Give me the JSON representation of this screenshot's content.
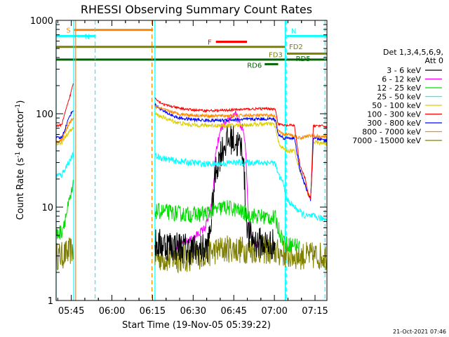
{
  "chart_data": {
    "type": "line",
    "title": "RHESSI Observing Summary Count Rates",
    "xlabel": "Start Time (19-Nov-05 05:39:22)",
    "ylabel_main": "Count Rate (s",
    "ylabel_sup1": "-1",
    "ylabel_mid": " detector",
    "ylabel_sup2": "-1",
    "ylabel_end": ")",
    "x_unit": "minutes after 05:39:22",
    "xlim": [
      0,
      100
    ],
    "ylim": [
      1,
      1000
    ],
    "y_scale": "log",
    "x_ticks": [
      {
        "label": "05:45",
        "t": 5.6
      },
      {
        "label": "06:00",
        "t": 20.6
      },
      {
        "label": "06:15",
        "t": 35.6
      },
      {
        "label": "06:30",
        "t": 50.6
      },
      {
        "label": "06:45",
        "t": 65.6
      },
      {
        "label": "07:00",
        "t": 80.6
      },
      {
        "label": "07:15",
        "t": 95.6
      }
    ],
    "y_ticks": [
      {
        "label": "1",
        "v": 1
      },
      {
        "label": "10",
        "v": 10
      },
      {
        "label": "100",
        "v": 100
      },
      {
        "label": "1000",
        "v": 1000
      }
    ],
    "legend": {
      "position": "right",
      "header": [
        "Det 1,3,4,5,6,9,",
        "Att 0"
      ],
      "entries": [
        {
          "label": "3 - 6 keV",
          "color": "#000000"
        },
        {
          "label": "6 - 12 keV",
          "color": "#ff00ff"
        },
        {
          "label": "12 - 25 keV",
          "color": "#00dd00"
        },
        {
          "label": "25 - 50 keV",
          "color": "#00ffff"
        },
        {
          "label": "50 - 100 keV",
          "color": "#ddcc00"
        },
        {
          "label": "100 - 300 keV",
          "color": "#ff0000"
        },
        {
          "label": "300 - 800 keV",
          "color": "#0000ff"
        },
        {
          "label": "800 - 7000 keV",
          "color": "#ff8800"
        },
        {
          "label": "7000 - 15000 keV",
          "color": "#808000"
        }
      ]
    },
    "flags": [
      {
        "label": "S",
        "color": "#ff8800",
        "t0": 6.4,
        "t1": 35.8,
        "v": 790
      },
      {
        "label": "N",
        "color": "#00ffff",
        "t0": 0,
        "t1": 14.6,
        "v": 680
      },
      {
        "label": "N",
        "color": "#00ffff",
        "t0": 85.2,
        "t1": 100,
        "v": 680
      },
      {
        "label": "F",
        "color": "#ff0000",
        "t0": 59.0,
        "t1": 70.5,
        "v": 590
      },
      {
        "label": "FD2",
        "color": "#808000",
        "t0": 0,
        "t1": 84.5,
        "v": 520
      },
      {
        "label": "FD3",
        "color": "#808000",
        "t0": 85.2,
        "t1": 100,
        "v": 440
      },
      {
        "label": "RD5",
        "color": "#006400",
        "t0": 0,
        "t1": 100,
        "v": 380
      },
      {
        "label": "RD6",
        "color": "#006400",
        "t0": 77.0,
        "t1": 82.0,
        "v": 340
      }
    ],
    "markers": [
      {
        "t": 0.0,
        "color": "#00ffff",
        "style": "solid"
      },
      {
        "t": 6.5,
        "color": "#00ffff",
        "style": "solid"
      },
      {
        "t": 7.2,
        "color": "#ff8800",
        "style": "solid"
      },
      {
        "t": 14.4,
        "color": "#00ffff",
        "style": "dashed"
      },
      {
        "t": 35.4,
        "color": "#ff8800",
        "style": "dashed"
      },
      {
        "t": 36.5,
        "color": "#00ffff",
        "style": "solid"
      },
      {
        "t": 84.6,
        "color": "#00ffff",
        "style": "solid"
      },
      {
        "t": 85.0,
        "color": "#00ffff",
        "style": "dashed"
      },
      {
        "t": 99.3,
        "color": "#00ffff",
        "style": "dashed"
      }
    ],
    "series": [
      {
        "name": "7000 - 15000 keV",
        "color": "#808000",
        "noise": 0.35,
        "points": [
          [
            0,
            3
          ],
          [
            2,
            3
          ],
          [
            4,
            3.2
          ],
          [
            6,
            3.5
          ],
          [
            6.3,
            3.3
          ],
          [
            36.5,
            3.0
          ],
          [
            40,
            2.8
          ],
          [
            44,
            2.8
          ],
          [
            48,
            2.8
          ],
          [
            52,
            3.0
          ],
          [
            56,
            3.2
          ],
          [
            60,
            3.5
          ],
          [
            64,
            3.6
          ],
          [
            68,
            3.5
          ],
          [
            72,
            3.5
          ],
          [
            76,
            3.5
          ],
          [
            80,
            3.3
          ],
          [
            84,
            3.2
          ],
          [
            85.2,
            3.0
          ],
          [
            90,
            3.0
          ],
          [
            95,
            3.0
          ],
          [
            100,
            3.0
          ]
        ]
      },
      {
        "name": "6 - 12 keV",
        "color": "#ff00ff",
        "noise": 0.1,
        "points": [
          [
            36.5,
            3.8
          ],
          [
            44,
            3.8
          ],
          [
            50,
            4.5
          ],
          [
            55,
            6
          ],
          [
            57,
            9
          ],
          [
            58,
            15
          ],
          [
            59,
            40
          ],
          [
            61,
            70
          ],
          [
            63,
            80
          ],
          [
            65,
            95
          ],
          [
            66,
            100
          ],
          [
            67,
            90
          ],
          [
            68,
            75
          ],
          [
            69,
            70
          ],
          [
            70,
            40
          ],
          [
            71,
            8
          ],
          [
            72,
            5
          ],
          [
            74,
            4
          ],
          [
            75,
            4.2
          ]
        ]
      },
      {
        "name": "3 - 6 keV",
        "color": "#000000",
        "noise": 0.4,
        "points": [
          [
            36.5,
            4.0
          ],
          [
            40,
            4.0
          ],
          [
            45,
            3.8
          ],
          [
            50,
            3.5
          ],
          [
            54,
            3.5
          ],
          [
            56,
            3.8
          ],
          [
            57,
            6
          ],
          [
            59,
            25
          ],
          [
            61,
            40
          ],
          [
            63,
            50
          ],
          [
            65,
            55
          ],
          [
            66,
            50
          ],
          [
            68,
            45
          ],
          [
            69,
            40
          ],
          [
            70,
            10
          ],
          [
            71,
            5
          ],
          [
            74,
            4.2
          ],
          [
            78,
            4.0
          ],
          [
            81,
            4.0
          ]
        ]
      },
      {
        "name": "12 - 25 keV",
        "color": "#00dd00",
        "noise": 0.2,
        "points": [
          [
            0,
            5
          ],
          [
            2,
            5.5
          ],
          [
            3,
            7
          ],
          [
            4.5,
            10
          ],
          [
            6,
            15
          ],
          [
            6.3,
            16
          ],
          [
            36.5,
            9
          ],
          [
            40,
            9
          ],
          [
            45,
            8.5
          ],
          [
            50,
            8.3
          ],
          [
            55,
            8.5
          ],
          [
            60,
            9.5
          ],
          [
            62,
            10
          ],
          [
            66,
            9.5
          ],
          [
            70,
            8.5
          ],
          [
            74,
            8.0
          ],
          [
            78,
            7.8
          ],
          [
            81,
            7.6
          ],
          [
            82,
            6
          ],
          [
            83,
            5
          ],
          [
            84,
            4.5
          ],
          [
            85.2,
            4
          ],
          [
            88,
            4
          ],
          [
            90,
            3.8
          ]
        ]
      },
      {
        "name": "25 - 50 keV",
        "color": "#00ffff",
        "noise": 0.08,
        "points": [
          [
            0,
            22
          ],
          [
            2,
            22
          ],
          [
            3,
            25
          ],
          [
            4.5,
            30
          ],
          [
            6,
            35
          ],
          [
            6.3,
            36
          ],
          [
            36.5,
            35
          ],
          [
            40,
            33
          ],
          [
            45,
            31
          ],
          [
            50,
            30
          ],
          [
            55,
            29
          ],
          [
            60,
            29
          ],
          [
            65,
            30
          ],
          [
            70,
            30
          ],
          [
            75,
            30
          ],
          [
            80,
            30
          ],
          [
            81,
            29
          ],
          [
            82,
            22
          ],
          [
            83,
            20
          ],
          [
            84,
            18
          ],
          [
            85.2,
            12
          ],
          [
            88,
            10
          ],
          [
            92,
            8
          ],
          [
            95,
            8
          ],
          [
            98,
            7.5
          ],
          [
            100,
            7.5
          ]
        ]
      },
      {
        "name": "50 - 100 keV",
        "color": "#ddcc00",
        "noise": 0.05,
        "points": [
          [
            0,
            48
          ],
          [
            2,
            48
          ],
          [
            3,
            55
          ],
          [
            5,
            65
          ],
          [
            6.3,
            70
          ],
          [
            36.5,
            100
          ],
          [
            40,
            90
          ],
          [
            45,
            80
          ],
          [
            50,
            76
          ],
          [
            55,
            75
          ],
          [
            60,
            75
          ],
          [
            65,
            75
          ],
          [
            70,
            76
          ],
          [
            75,
            77
          ],
          [
            80,
            78
          ],
          [
            81,
            72
          ],
          [
            82,
            50
          ],
          [
            83,
            45
          ],
          [
            84,
            42
          ],
          [
            85.2,
            40
          ],
          [
            88,
            40
          ],
          [
            90,
            25
          ],
          [
            93,
            14
          ],
          [
            94,
            12
          ],
          [
            95,
            50
          ],
          [
            98,
            48
          ],
          [
            100,
            48
          ]
        ]
      },
      {
        "name": "300 - 800 keV",
        "color": "#0000ff",
        "noise": 0.04,
        "points": [
          [
            0,
            55
          ],
          [
            2,
            55
          ],
          [
            3,
            65
          ],
          [
            5,
            95
          ],
          [
            6.3,
            110
          ],
          [
            36.5,
            125
          ],
          [
            40,
            105
          ],
          [
            45,
            90
          ],
          [
            50,
            87
          ],
          [
            55,
            85
          ],
          [
            60,
            85
          ],
          [
            65,
            86
          ],
          [
            70,
            87
          ],
          [
            75,
            88
          ],
          [
            80,
            88
          ],
          [
            81,
            85
          ],
          [
            82,
            60
          ],
          [
            84,
            55
          ],
          [
            85.2,
            55
          ],
          [
            88,
            55
          ],
          [
            90,
            25
          ],
          [
            93,
            14
          ],
          [
            94,
            12
          ],
          [
            95,
            55
          ],
          [
            98,
            53
          ],
          [
            100,
            52
          ]
        ]
      },
      {
        "name": "800 - 7000 keV",
        "color": "#ff8800",
        "noise": 0.04,
        "points": [
          [
            0,
            50
          ],
          [
            2,
            52
          ],
          [
            3,
            60
          ],
          [
            5,
            80
          ],
          [
            6.3,
            90
          ],
          [
            36.5,
            120
          ],
          [
            40,
            110
          ],
          [
            45,
            100
          ],
          [
            50,
            97
          ],
          [
            55,
            95
          ],
          [
            60,
            95
          ],
          [
            65,
            95
          ],
          [
            70,
            96
          ],
          [
            75,
            96
          ],
          [
            80,
            96
          ],
          [
            81,
            92
          ],
          [
            82,
            65
          ],
          [
            84,
            60
          ],
          [
            85.2,
            60
          ],
          [
            88,
            58
          ],
          [
            90,
            55
          ],
          [
            93,
            58
          ],
          [
            95,
            58
          ],
          [
            98,
            57
          ],
          [
            100,
            56
          ]
        ]
      },
      {
        "name": "100 - 300 keV",
        "color": "#ff0000",
        "noise": 0.03,
        "points": [
          [
            0,
            75
          ],
          [
            2,
            75
          ],
          [
            3,
            95
          ],
          [
            5,
            150
          ],
          [
            6.3,
            210
          ],
          [
            36.5,
            150
          ],
          [
            38,
            135
          ],
          [
            40,
            125
          ],
          [
            45,
            115
          ],
          [
            50,
            110
          ],
          [
            55,
            108
          ],
          [
            60,
            108
          ],
          [
            65,
            110
          ],
          [
            70,
            112
          ],
          [
            75,
            113
          ],
          [
            80,
            113
          ],
          [
            81,
            110
          ],
          [
            82,
            78
          ],
          [
            84,
            75
          ],
          [
            85.2,
            75
          ],
          [
            88,
            75
          ],
          [
            90,
            28
          ],
          [
            92,
            20
          ],
          [
            93,
            14
          ],
          [
            94,
            12
          ],
          [
            95,
            75
          ],
          [
            98,
            74
          ],
          [
            100,
            73
          ]
        ]
      }
    ]
  },
  "footer": {
    "timestamp": "21-Oct-2021 07:46"
  }
}
